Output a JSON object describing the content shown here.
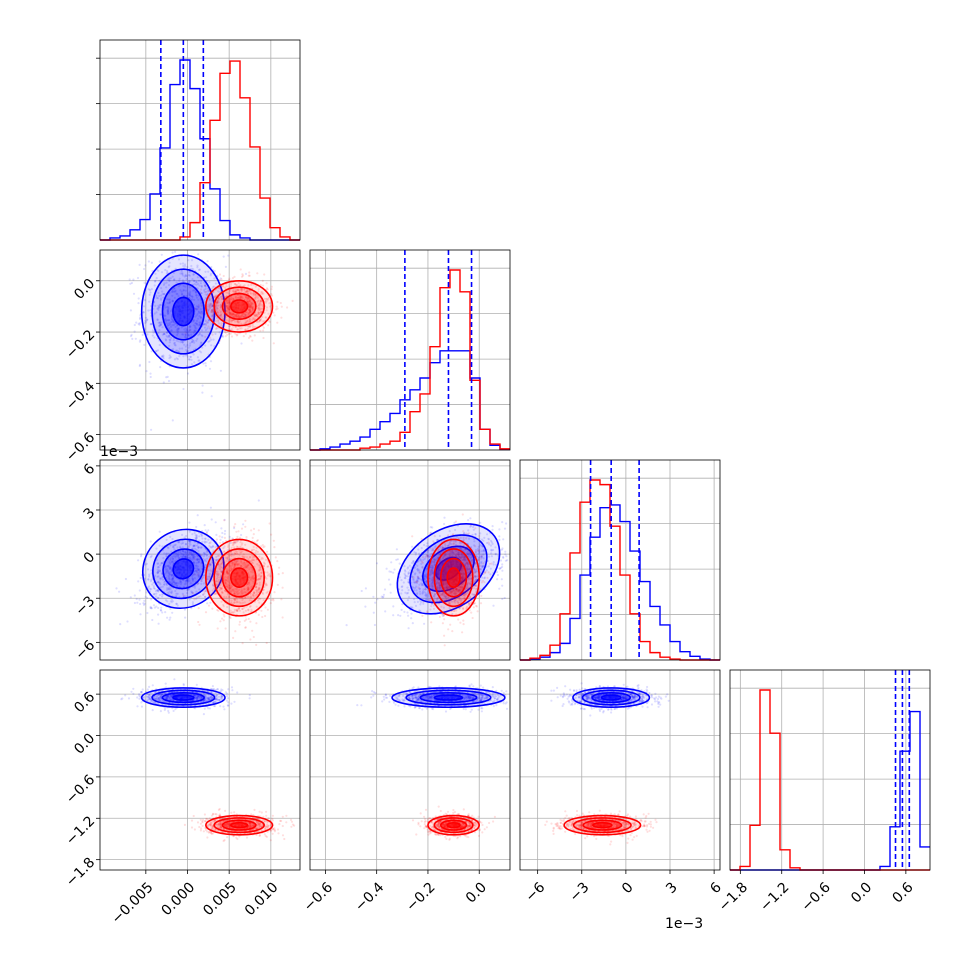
{
  "chart_data": {
    "type": "corner",
    "series": [
      {
        "name": "",
        "color": "#0000ff"
      },
      {
        "name": "",
        "color": "#ff0000"
      }
    ],
    "parameters": [
      {
        "range": [
          -0.0105,
          0.0135
        ],
        "ticks": [
          -0.005,
          0.0,
          0.005,
          0.01
        ],
        "tick_labels": [
          "−0.005",
          "0.000",
          "0.005",
          "0.010"
        ]
      },
      {
        "range": [
          -0.66,
          0.12
        ],
        "ticks": [
          -0.6,
          -0.4,
          -0.2,
          0.0
        ],
        "tick_labels": [
          "−0.6",
          "−0.4",
          "−0.2",
          "0.0"
        ]
      },
      {
        "range": [
          -7.2,
          6.4
        ],
        "ticks": [
          -6,
          -3,
          0,
          3,
          6
        ],
        "tick_labels": [
          "−6",
          "−3",
          "0",
          "3",
          "6"
        ],
        "offset_label": "1e−3"
      },
      {
        "range": [
          -1.95,
          0.95
        ],
        "ticks": [
          -1.8,
          -1.2,
          -0.6,
          0.0,
          0.6
        ],
        "tick_labels": [
          "−1.8",
          "−1.2",
          "−0.6",
          "0.0",
          "0.6"
        ]
      }
    ],
    "quantiles": [
      [
        -0.0032,
        -0.0005,
        0.0019
      ],
      [
        -0.29,
        -0.12,
        -0.03
      ],
      [
        -2.4,
        -1.0,
        0.9
      ],
      [
        0.45,
        0.55,
        0.65
      ]
    ],
    "samples": {
      "blue": {
        "mean": [
          -0.0005,
          -0.12,
          -1.0,
          0.55
        ],
        "std": [
          0.0025,
          0.11,
          1.3,
          0.07
        ]
      },
      "red": {
        "mean": [
          0.0062,
          -0.1,
          -1.6,
          -1.3
        ],
        "std": [
          0.002,
          0.05,
          1.3,
          0.07
        ]
      }
    },
    "histograms": [
      {
        "edges": [
          -0.0105,
          -0.0093,
          -0.0081,
          -0.0069,
          -0.0057,
          -0.0045,
          -0.0033,
          -0.0021,
          -0.0009,
          0.0003,
          0.0015,
          0.0027,
          0.0039,
          0.0051,
          0.0063,
          0.0075,
          0.0087,
          0.0099,
          0.0111,
          0.0123,
          0.0135
        ],
        "blue": [
          0,
          2,
          4,
          10,
          20,
          45,
          90,
          152,
          176,
          148,
          99,
          50,
          19,
          5,
          2,
          0,
          0,
          0,
          0,
          0
        ],
        "red": [
          0,
          0,
          0,
          0,
          0,
          0,
          0,
          0,
          3,
          17,
          56,
          117,
          163,
          175,
          139,
          91,
          41,
          12,
          3,
          0
        ]
      },
      {
        "edges": [
          -0.66,
          -0.621,
          -0.582,
          -0.543,
          -0.504,
          -0.465,
          -0.426,
          -0.387,
          -0.348,
          -0.309,
          -0.27,
          -0.231,
          -0.192,
          -0.153,
          -0.114,
          -0.075,
          -0.036,
          0.003,
          0.042,
          0.081,
          0.12
        ],
        "blue": [
          0,
          2,
          5,
          10,
          15,
          22,
          35,
          48,
          62,
          85,
          102,
          122,
          148,
          168,
          168,
          168,
          122,
          35,
          8,
          1
        ],
        "red": [
          0,
          0,
          0,
          0,
          0,
          3,
          5,
          10,
          15,
          30,
          65,
          95,
          175,
          275,
          305,
          268,
          118,
          35,
          10,
          2
        ]
      },
      {
        "edges": [
          -7.2,
          -6.52,
          -5.84,
          -5.16,
          -4.48,
          -3.8,
          -3.12,
          -2.44,
          -1.76,
          -1.08,
          -0.4,
          0.28,
          0.96,
          1.64,
          2.32,
          3.0,
          3.68,
          4.36,
          5.04,
          5.72,
          6.4
        ],
        "blue": [
          0,
          1,
          3,
          8,
          18,
          45,
          92,
          133,
          165,
          168,
          150,
          118,
          85,
          58,
          38,
          20,
          9,
          4,
          1,
          0
        ],
        "red": [
          0,
          2,
          5,
          16,
          50,
          116,
          171,
          195,
          190,
          145,
          92,
          50,
          20,
          8,
          3,
          1,
          0,
          0,
          0,
          0
        ]
      },
      {
        "edges": [
          -1.95,
          -1.805,
          -1.66,
          -1.515,
          -1.37,
          -1.225,
          -1.08,
          -0.935,
          -0.79,
          -0.645,
          -0.5,
          -0.355,
          -0.21,
          -0.065,
          0.08,
          0.225,
          0.37,
          0.515,
          0.66,
          0.805,
          0.95
        ],
        "blue": [
          0,
          0,
          0,
          0,
          0,
          0,
          0,
          0,
          0,
          0,
          0,
          0,
          0,
          0,
          0,
          5,
          60,
          165,
          220,
          32
        ],
        "red": [
          0,
          5,
          62,
          250,
          190,
          28,
          3,
          0,
          0,
          0,
          0,
          0,
          0,
          0,
          0,
          0,
          0,
          0,
          0,
          0
        ]
      }
    ]
  }
}
